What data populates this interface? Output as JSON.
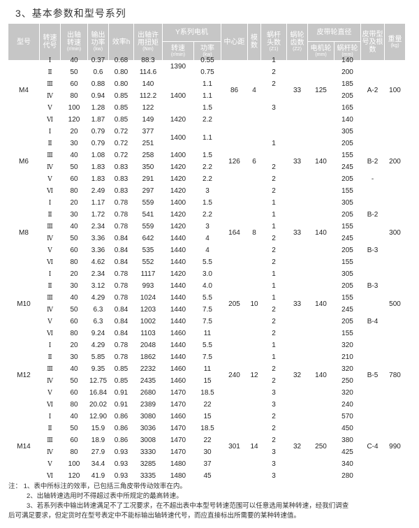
{
  "title": "3、基本参数和型号系列",
  "header": {
    "model": "型号",
    "code": "转速代号",
    "out_speed": "出轴转速",
    "out_speed_unit": "(r/min)",
    "power": "输出功率",
    "power_unit": "(kw)",
    "efficiency": "效率h",
    "torque": "出轴许用扭矩",
    "torque_unit": "(Nm)",
    "motor": "Y系列电机",
    "motor_speed": "转速",
    "motor_speed_unit": "(r/min)",
    "motor_power": "功率",
    "motor_power_unit": "(kw)",
    "center_distance": "中心距",
    "module": "模数",
    "z1": "蜗杆头数",
    "z1_unit": "(Z1)",
    "z2": "蜗轮齿数",
    "z2_unit": "(Z2)",
    "pulley": "皮带轮直径",
    "motor_pulley": "电机轮",
    "motor_pulley_unit": "(mm)",
    "worm_pulley": "蜗杆轮",
    "worm_pulley_unit": "(mm)",
    "belt": "皮带型号及根数",
    "weight": "重量",
    "weight_unit": "(kg)"
  },
  "groups": [
    {
      "model": "M4",
      "center_distance": "86",
      "module": "4",
      "z2": "33",
      "motor_pulley": "125",
      "belt": "A-2",
      "weight": "100",
      "rows": [
        {
          "code": "I",
          "speed": "40",
          "power": "0.37",
          "eff": "0.68",
          "torque": "88.3",
          "motor_speed": "1390",
          "motor_power": "0.55",
          "z1": "1",
          "worm_pulley": "140",
          "belt": ""
        },
        {
          "code": "II",
          "speed": "50",
          "power": "0.6",
          "eff": "0.80",
          "torque": "114.6",
          "motor_speed": "",
          "motor_power": "0.75",
          "z1": "2",
          "worm_pulley": "200",
          "belt": ""
        },
        {
          "code": "III",
          "speed": "60",
          "power": "0.88",
          "eff": "0.80",
          "torque": "140",
          "motor_speed": "",
          "motor_power": "1.1",
          "z1": "2",
          "worm_pulley": "185",
          "belt": ""
        },
        {
          "code": "IV",
          "speed": "80",
          "power": "0.94",
          "eff": "0.85",
          "torque": "112.2",
          "motor_speed": "1400",
          "motor_power": "1.1",
          "z1": "",
          "worm_pulley": "205",
          "belt": ""
        },
        {
          "code": "V",
          "speed": "100",
          "power": "1.28",
          "eff": "0.85",
          "torque": "122",
          "motor_speed": "",
          "motor_power": "1.5",
          "z1": "3",
          "worm_pulley": "165",
          "belt": ""
        },
        {
          "code": "VI",
          "speed": "120",
          "power": "1.87",
          "eff": "0.85",
          "torque": "149",
          "motor_speed": "1420",
          "motor_power": "2.2",
          "z1": "",
          "worm_pulley": "140",
          "belt": ""
        }
      ]
    },
    {
      "model": "M6",
      "center_distance": "126",
      "module": "6",
      "z2": "33",
      "motor_pulley": "140",
      "belt": "B-2",
      "weight": "200",
      "rows": [
        {
          "code": "I",
          "speed": "20",
          "power": "0.79",
          "eff": "0.72",
          "torque": "377",
          "motor_speed": "1400",
          "motor_power": "1.1",
          "z1": "",
          "worm_pulley": "305",
          "belt": ""
        },
        {
          "code": "II",
          "speed": "30",
          "power": "0.79",
          "eff": "0.72",
          "torque": "251",
          "motor_speed": "",
          "motor_power": "",
          "z1": "1",
          "worm_pulley": "205",
          "belt": ""
        },
        {
          "code": "III",
          "speed": "40",
          "power": "1.08",
          "eff": "0.72",
          "torque": "258",
          "motor_speed": "1400",
          "motor_power": "1.5",
          "z1": "",
          "worm_pulley": "155",
          "belt": ""
        },
        {
          "code": "IV",
          "speed": "50",
          "power": "1.83",
          "eff": "0.83",
          "torque": "350",
          "motor_speed": "1420",
          "motor_power": "2.2",
          "z1": "2",
          "worm_pulley": "245",
          "belt": ""
        },
        {
          "code": "V",
          "speed": "60",
          "power": "1.83",
          "eff": "0.83",
          "torque": "291",
          "motor_speed": "1420",
          "motor_power": "2.2",
          "z1": "2",
          "worm_pulley": "205",
          "belt": "-"
        },
        {
          "code": "VI",
          "speed": "80",
          "power": "2.49",
          "eff": "0.83",
          "torque": "297",
          "motor_speed": "1420",
          "motor_power": "3",
          "z1": "2",
          "worm_pulley": "155",
          "belt": ""
        }
      ]
    },
    {
      "model": "M8",
      "center_distance": "164",
      "module": "8",
      "z2": "33",
      "motor_pulley": "140",
      "belt": "",
      "weight": "300",
      "rows": [
        {
          "code": "I",
          "speed": "20",
          "power": "1.17",
          "eff": "0.78",
          "torque": "559",
          "motor_speed": "1400",
          "motor_power": "1.5",
          "z1": "1",
          "worm_pulley": "305",
          "belt": ""
        },
        {
          "code": "II",
          "speed": "30",
          "power": "1.72",
          "eff": "0.78",
          "torque": "541",
          "motor_speed": "1420",
          "motor_power": "2.2",
          "z1": "1",
          "worm_pulley": "205",
          "belt": "B-2"
        },
        {
          "code": "III",
          "speed": "40",
          "power": "2.34",
          "eff": "0.78",
          "torque": "559",
          "motor_speed": "1420",
          "motor_power": "3",
          "z1": "1",
          "worm_pulley": "155",
          "belt": ""
        },
        {
          "code": "IV",
          "speed": "50",
          "power": "3.36",
          "eff": "0.84",
          "torque": "642",
          "motor_speed": "1440",
          "motor_power": "4",
          "z1": "2",
          "worm_pulley": "245",
          "belt": ""
        },
        {
          "code": "V",
          "speed": "60",
          "power": "3.36",
          "eff": "0.84",
          "torque": "535",
          "motor_speed": "1440",
          "motor_power": "4",
          "z1": "2",
          "worm_pulley": "205",
          "belt": "B-3"
        },
        {
          "code": "VI",
          "speed": "80",
          "power": "4.62",
          "eff": "0.84",
          "torque": "552",
          "motor_speed": "1440",
          "motor_power": "5.5",
          "z1": "2",
          "worm_pulley": "155",
          "belt": ""
        }
      ]
    },
    {
      "model": "M10",
      "center_distance": "205",
      "module": "10",
      "z2": "33",
      "motor_pulley": "140",
      "belt": "",
      "weight": "500",
      "rows": [
        {
          "code": "I",
          "speed": "20",
          "power": "2.34",
          "eff": "0.78",
          "torque": "1117",
          "motor_speed": "1420",
          "motor_power": "3.0",
          "z1": "1",
          "worm_pulley": "305",
          "belt": ""
        },
        {
          "code": "II",
          "speed": "30",
          "power": "3.12",
          "eff": "0.78",
          "torque": "993",
          "motor_speed": "1440",
          "motor_power": "4.0",
          "z1": "1",
          "worm_pulley": "205",
          "belt": "B-3"
        },
        {
          "code": "III",
          "speed": "40",
          "power": "4.29",
          "eff": "0.78",
          "torque": "1024",
          "motor_speed": "1440",
          "motor_power": "5.5",
          "z1": "1",
          "worm_pulley": "155",
          "belt": ""
        },
        {
          "code": "IV",
          "speed": "50",
          "power": "6.3",
          "eff": "0.84",
          "torque": "1203",
          "motor_speed": "1440",
          "motor_power": "7.5",
          "z1": "2",
          "worm_pulley": "245",
          "belt": ""
        },
        {
          "code": "V",
          "speed": "60",
          "power": "6.3",
          "eff": "0.84",
          "torque": "1002",
          "motor_speed": "1440",
          "motor_power": "7.5",
          "z1": "2",
          "worm_pulley": "205",
          "belt": "B-4"
        },
        {
          "code": "VI",
          "speed": "80",
          "power": "9.24",
          "eff": "0.84",
          "torque": "1103",
          "motor_speed": "1460",
          "motor_power": "11",
          "z1": "2",
          "worm_pulley": "155",
          "belt": ""
        }
      ]
    },
    {
      "model": "M12",
      "center_distance": "240",
      "module": "12",
      "z2": "32",
      "motor_pulley": "140",
      "belt": "B-5",
      "weight": "780",
      "rows": [
        {
          "code": "I",
          "speed": "20",
          "power": "4.29",
          "eff": "0.78",
          "torque": "2048",
          "motor_speed": "1440",
          "motor_power": "5.5",
          "z1": "1",
          "worm_pulley": "320",
          "belt": ""
        },
        {
          "code": "II",
          "speed": "30",
          "power": "5.85",
          "eff": "0.78",
          "torque": "1862",
          "motor_speed": "1440",
          "motor_power": "7.5",
          "z1": "1",
          "worm_pulley": "210",
          "belt": ""
        },
        {
          "code": "III",
          "speed": "40",
          "power": "9.35",
          "eff": "0.85",
          "torque": "2232",
          "motor_speed": "1460",
          "motor_power": "11",
          "z1": "2",
          "worm_pulley": "320",
          "belt": ""
        },
        {
          "code": "IV",
          "speed": "50",
          "power": "12.75",
          "eff": "0.85",
          "torque": "2435",
          "motor_speed": "1460",
          "motor_power": "15",
          "z1": "2",
          "worm_pulley": "250",
          "belt": ""
        },
        {
          "code": "V",
          "speed": "60",
          "power": "16.84",
          "eff": "0.91",
          "torque": "2680",
          "motor_speed": "1470",
          "motor_power": "18.5",
          "z1": "3",
          "worm_pulley": "320",
          "belt": ""
        },
        {
          "code": "VI",
          "speed": "80",
          "power": "20.02",
          "eff": "0.91",
          "torque": "2389",
          "motor_speed": "1470",
          "motor_power": "22",
          "z1": "3",
          "worm_pulley": "240",
          "belt": ""
        }
      ]
    },
    {
      "model": "M14",
      "center_distance": "301",
      "module": "14",
      "z2": "32",
      "motor_pulley": "250",
      "belt": "C-4",
      "weight": "990",
      "rows": [
        {
          "code": "I",
          "speed": "40",
          "power": "12.90",
          "eff": "0.86",
          "torque": "3080",
          "motor_speed": "1460",
          "motor_power": "15",
          "z1": "2",
          "worm_pulley": "570",
          "belt": ""
        },
        {
          "code": "II",
          "speed": "50",
          "power": "15.9",
          "eff": "0.86",
          "torque": "3036",
          "motor_speed": "1470",
          "motor_power": "18.5",
          "z1": "2",
          "worm_pulley": "450",
          "belt": ""
        },
        {
          "code": "III",
          "speed": "60",
          "power": "18.9",
          "eff": "0.86",
          "torque": "3008",
          "motor_speed": "1470",
          "motor_power": "22",
          "z1": "2",
          "worm_pulley": "380",
          "belt": ""
        },
        {
          "code": "IV",
          "speed": "80",
          "power": "27.9",
          "eff": "0.93",
          "torque": "3330",
          "motor_speed": "1470",
          "motor_power": "30",
          "z1": "3",
          "worm_pulley": "425",
          "belt": ""
        },
        {
          "code": "V",
          "speed": "100",
          "power": "34.4",
          "eff": "0.93",
          "torque": "3285",
          "motor_speed": "1480",
          "motor_power": "37",
          "z1": "3",
          "worm_pulley": "340",
          "belt": ""
        },
        {
          "code": "VI",
          "speed": "120",
          "power": "41.9",
          "eff": "0.93",
          "torque": "3335",
          "motor_speed": "1480",
          "motor_power": "45",
          "z1": "3",
          "worm_pulley": "280",
          "belt": ""
        }
      ]
    }
  ],
  "notes": [
    "注：  1、表中所标注的效率，已包括三角皮带传动效率在内。",
    "2、出轴转速选用时不得超过表中所规定的最高转速。",
    "3、若系列表中输出转速满足不了工况要求，在不超出表中本型号转速范围可以任意选用某种转速，经我们调查",
    "后可满足要求，但定货时在型号表定中不能标输出轴转速代号，而应直接标出所需要的某种转速值。"
  ]
}
